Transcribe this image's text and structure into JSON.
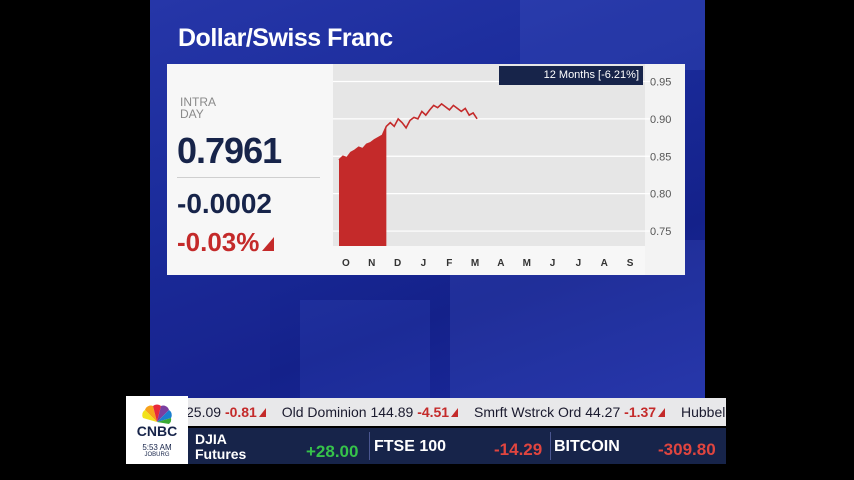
{
  "title": "Dollar/Swiss Franc",
  "quote": {
    "label": "INTRA DAY",
    "price": "0.7961",
    "change": "-0.0002",
    "percent": "-0.03%"
  },
  "chart": {
    "badge": "12 Months [-6.21%]",
    "y_ticks": [
      "0.95",
      "0.90",
      "0.85",
      "0.80",
      "0.75"
    ],
    "x_ticks": [
      "O",
      "N",
      "D",
      "J",
      "F",
      "M",
      "A",
      "M",
      "J",
      "J",
      "A",
      "S"
    ]
  },
  "chart_data": {
    "type": "line",
    "title": "",
    "ylim": [
      0.73,
      0.96
    ],
    "y_ticks": [
      0.95,
      0.9,
      0.85,
      0.8,
      0.75
    ],
    "x_ticks": [
      "O",
      "N",
      "D",
      "J",
      "F",
      "M",
      "A",
      "M",
      "J",
      "J",
      "A",
      "S"
    ],
    "series": [
      {
        "values": [
          0.845,
          0.85,
          0.848,
          0.855,
          0.858,
          0.862,
          0.86,
          0.866,
          0.868,
          0.872,
          0.875,
          0.878,
          0.89,
          0.895,
          0.89,
          0.9,
          0.895,
          0.888,
          0.898,
          0.902,
          0.9,
          0.91,
          0.905,
          0.912,
          0.918,
          0.915,
          0.92,
          0.916,
          0.912,
          0.918,
          0.914,
          0.91,
          0.914,
          0.905,
          0.908,
          0.9
        ],
        "x": [
          0.0,
          0.2,
          0.4,
          0.6,
          0.8,
          1.0,
          1.2,
          1.4,
          1.6,
          1.8,
          2.0,
          2.2,
          2.4,
          2.6,
          2.8,
          3.0,
          3.2,
          3.4,
          3.6,
          3.8,
          4.0,
          4.2,
          4.4,
          4.6,
          4.8,
          5.0,
          5.2,
          5.4,
          5.6,
          5.8,
          6.0,
          6.2,
          6.4,
          6.6,
          6.8,
          7.0
        ]
      }
    ],
    "grid": true,
    "legend": "none"
  },
  "ticker": {
    "top_items": [
      {
        "name": "",
        "price": "25.09",
        "change": "-0.81"
      },
      {
        "name": "Old Dominion",
        "price": "144.89",
        "change": "-4.51"
      },
      {
        "name": "Smrft Wstrck Ord",
        "price": "44.27",
        "change": "-1.37"
      },
      {
        "name": "Hubbel",
        "price": "",
        "change": ""
      }
    ],
    "markets": [
      {
        "name": "DJIA Futures",
        "value": "+28.00"
      },
      {
        "name": "FTSE 100",
        "value": "-14.29"
      },
      {
        "name": "BITCOIN",
        "value": "-309.80"
      }
    ]
  },
  "logo": {
    "brand": "CNBC",
    "time": "5:53 AM",
    "city": "JOBURG"
  },
  "colors": {
    "navy": "#17244a",
    "red": "#c42a2a",
    "green": "#36c24a",
    "background_blue": "#1a2b9a"
  }
}
